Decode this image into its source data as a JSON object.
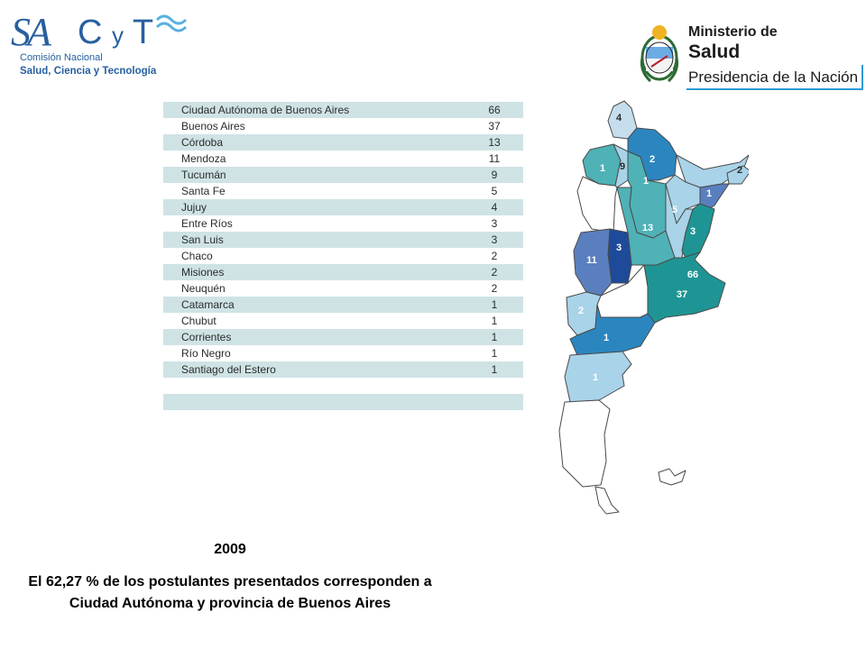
{
  "logos": {
    "sacyt": {
      "initials_sa": "SA",
      "initials_cyt_c": "C",
      "initials_cyt_y": "y",
      "initials_cyt_t": "T",
      "line1": "Comisión Nacional",
      "line2": "Salud, Ciencia y Tecnología",
      "color": "#27609f"
    },
    "ministerio": {
      "line1": "Ministerio de",
      "line2": "Salud",
      "line3": "Presidencia de la Nación",
      "icon": "argentina-coat-of-arms-icon",
      "accent": "#2d9ad6"
    }
  },
  "table": {
    "rows": [
      {
        "province": "Ciudad Autónoma de Buenos Aires",
        "value": "66"
      },
      {
        "province": "Buenos Aires",
        "value": "37"
      },
      {
        "province": "Córdoba",
        "value": "13"
      },
      {
        "province": "Mendoza",
        "value": "11"
      },
      {
        "province": "Tucumán",
        "value": "9"
      },
      {
        "province": "Santa Fe",
        "value": "5"
      },
      {
        "province": "Jujuy",
        "value": "4"
      },
      {
        "province": "Entre Ríos",
        "value": "3"
      },
      {
        "province": "San Luis",
        "value": "3"
      },
      {
        "province": "Chaco",
        "value": "2"
      },
      {
        "province": "Misiones",
        "value": "2"
      },
      {
        "province": "Neuquén",
        "value": "2"
      },
      {
        "province": "Catamarca",
        "value": "1"
      },
      {
        "province": "Chubut",
        "value": "1"
      },
      {
        "province": "Corrientes",
        "value": "1"
      },
      {
        "province": "Río Negro",
        "value": "1"
      },
      {
        "province": "Santiago del Estero",
        "value": "1"
      },
      {
        "province": "",
        "value": ""
      },
      {
        "province": "",
        "value": ""
      }
    ],
    "row_shade": "#cfe3e5"
  },
  "map": {
    "labels": {
      "jujuy": "4",
      "catamarca": "1",
      "tucuman": "9",
      "salta": "2",
      "santiago": "1",
      "chaco": "1",
      "formosa": "2",
      "santafe": "5",
      "cordoba": "13",
      "entrerios": "3",
      "sanjuan_left": "1",
      "mendoza": "11",
      "sanluis": "3",
      "caba": "66",
      "buenosaires": "37",
      "neuquen": "2",
      "rionegro": "1",
      "chubut": "1"
    },
    "colors": {
      "light": "#a9d3e8",
      "mid_teal": "#4fb2b6",
      "teal": "#1e9594",
      "dark_teal": "#1a8a88",
      "blue": "#2b86c0",
      "slate": "#5a7fbf",
      "navy": "#1e4a9a",
      "pale": "#c5dded"
    }
  },
  "caption": {
    "year": "2009",
    "text": "El 62,27 % de los postulantes presentados corresponden a Ciudad Autónoma y provincia de Buenos Aires"
  }
}
